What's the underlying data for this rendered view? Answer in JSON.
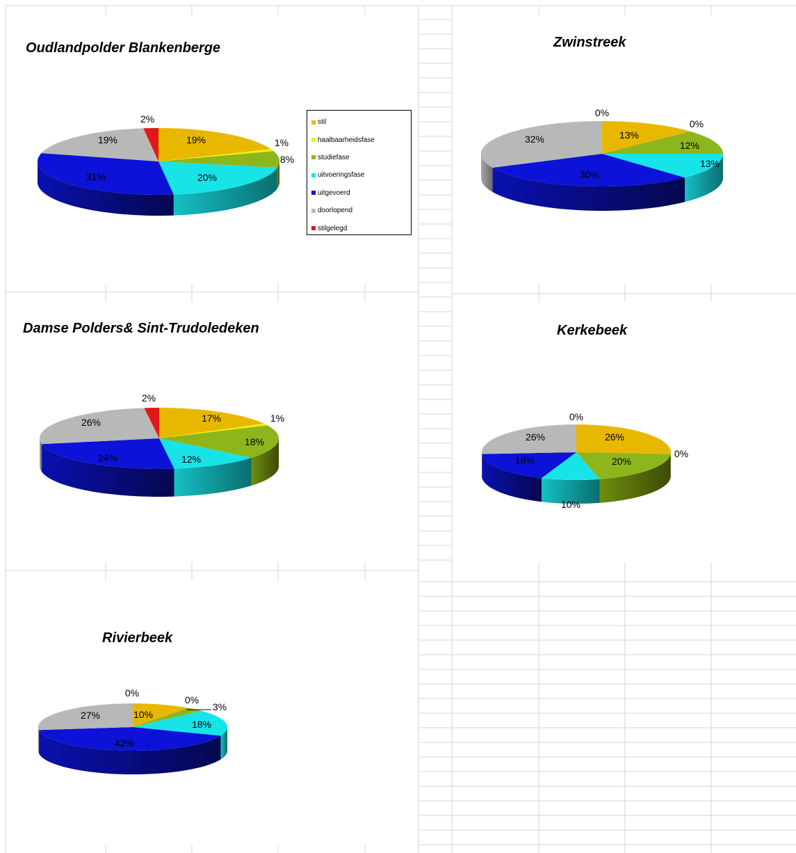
{
  "categories": [
    "stil",
    "haalbaarheidsfase",
    "studiefase",
    "uitvoeringsfase",
    "uitgevoerd",
    "doorlopend",
    "stilgelegd"
  ],
  "colors": [
    "#e8b800",
    "#f2f200",
    "#8db61c",
    "#18e4e8",
    "#0c12d8",
    "#b8b8b8",
    "#e01818"
  ],
  "legend": {
    "items": [
      {
        "label": "stil",
        "color": "#e8b800"
      },
      {
        "label": "haalbaarheidsfase",
        "color": "#f2f200"
      },
      {
        "label": "studiefase",
        "color": "#8db61c"
      },
      {
        "label": "uitvoeringsfase",
        "color": "#18e4e8"
      },
      {
        "label": "uitgevoerd",
        "color": "#0c12d8"
      },
      {
        "label": "doorlopend",
        "color": "#b8b8b8"
      },
      {
        "label": "stilgelegd",
        "color": "#e01818"
      }
    ]
  },
  "chart_data": [
    {
      "type": "pie",
      "title": "Oudlandpolder Blankenberge",
      "categories": [
        "stil",
        "haalbaarheidsfase",
        "studiefase",
        "uitvoeringsfase",
        "uitgevoerd",
        "doorlopend",
        "stilgelegd"
      ],
      "values": [
        19,
        1,
        8,
        20,
        31,
        19,
        2
      ],
      "labels": [
        "19%",
        "1%",
        "8%",
        "20%",
        "31%",
        "19%",
        "2%"
      ]
    },
    {
      "type": "pie",
      "title": "Zwinstreek",
      "categories": [
        "stil",
        "haalbaarheidsfase",
        "studiefase",
        "uitvoeringsfase",
        "uitgevoerd",
        "doorlopend",
        "stilgelegd"
      ],
      "values": [
        13,
        0,
        12,
        13,
        30,
        32,
        0
      ],
      "labels": [
        "13%",
        "0%",
        "12%",
        "13%",
        "30%",
        "32%",
        "0%"
      ]
    },
    {
      "type": "pie",
      "title": "Damse Polders& Sint-Trudoledeken",
      "categories": [
        "stil",
        "haalbaarheidsfase",
        "studiefase",
        "uitvoeringsfase",
        "uitgevoerd",
        "doorlopend",
        "stilgelegd"
      ],
      "values": [
        17,
        1,
        18,
        12,
        24,
        26,
        2
      ],
      "labels": [
        "17%",
        "1%",
        "18%",
        "12%",
        "24%",
        "26%",
        "2%"
      ]
    },
    {
      "type": "pie",
      "title": "Kerkebeek",
      "categories": [
        "stil",
        "haalbaarheidsfase",
        "studiefase",
        "uitvoeringsfase",
        "uitgevoerd",
        "doorlopend",
        "stilgelegd"
      ],
      "values": [
        26,
        0,
        20,
        10,
        18,
        26,
        0
      ],
      "labels": [
        "26%",
        "0%",
        "20%",
        "10%",
        "18%",
        "26%",
        "0%"
      ]
    },
    {
      "type": "pie",
      "title": "Rivierbeek",
      "categories": [
        "stil",
        "haalbaarheidsfase",
        "studiefase",
        "uitvoeringsfase",
        "uitgevoerd",
        "doorlopend",
        "stilgelegd"
      ],
      "values": [
        10,
        0,
        3,
        18,
        42,
        27,
        0
      ],
      "labels": [
        "10%",
        "0%",
        "3%",
        "18%",
        "42%",
        "27%",
        "0%"
      ]
    }
  ]
}
